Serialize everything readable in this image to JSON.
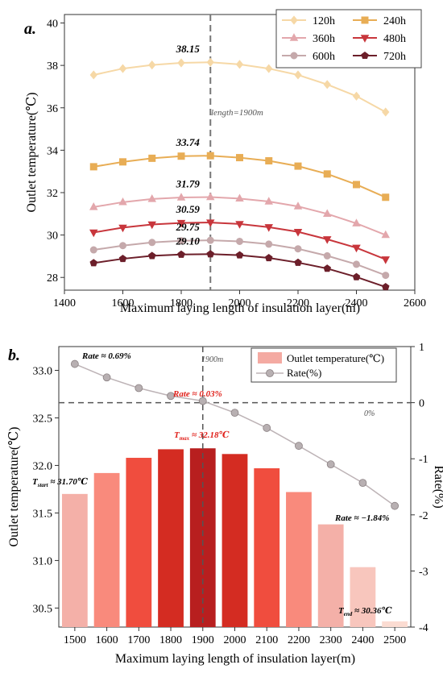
{
  "chart_data": [
    {
      "type": "line",
      "panel_label": "a.",
      "xlabel": "Maximum laying length of insulation layer(m)",
      "ylabel": "Outlet temperature(℃)",
      "xlim": [
        1400,
        2600
      ],
      "ylim": [
        27.4,
        40.4
      ],
      "xticks": [
        "1400",
        "1600",
        "1800",
        "2000",
        "2200",
        "2400",
        "2600"
      ],
      "yticks": [
        "28",
        "30",
        "32",
        "34",
        "36",
        "38",
        "40"
      ],
      "legend_position": "top-right",
      "x": [
        1500,
        1600,
        1700,
        1800,
        1900,
        2000,
        2100,
        2200,
        2300,
        2400,
        2500
      ],
      "series": [
        {
          "name": "120h",
          "color": "#f6d8a6",
          "marker": "diamond",
          "values": [
            37.55,
            37.85,
            38.02,
            38.12,
            38.15,
            38.05,
            37.85,
            37.55,
            37.1,
            36.55,
            35.8
          ]
        },
        {
          "name": "240h",
          "color": "#e8ad55",
          "marker": "square",
          "values": [
            33.22,
            33.45,
            33.62,
            33.72,
            33.74,
            33.65,
            33.5,
            33.25,
            32.88,
            32.38,
            31.78
          ]
        },
        {
          "name": "360h",
          "color": "#e3a7ac",
          "marker": "triangle-up",
          "values": [
            31.32,
            31.55,
            31.7,
            31.77,
            31.79,
            31.72,
            31.58,
            31.35,
            31.0,
            30.55,
            30.0
          ]
        },
        {
          "name": "480h",
          "color": "#c8363c",
          "marker": "triangle-down",
          "values": [
            30.12,
            30.35,
            30.5,
            30.57,
            30.59,
            30.52,
            30.37,
            30.15,
            29.8,
            29.4,
            28.85
          ]
        },
        {
          "name": "600h",
          "color": "#c5a9ab",
          "marker": "circle",
          "values": [
            29.3,
            29.5,
            29.65,
            29.73,
            29.75,
            29.7,
            29.57,
            29.35,
            29.02,
            28.62,
            28.1
          ]
        },
        {
          "name": "720h",
          "color": "#6c1f2a",
          "marker": "pentagon",
          "values": [
            28.68,
            28.88,
            29.02,
            29.08,
            29.1,
            29.05,
            28.92,
            28.7,
            28.42,
            28.02,
            27.55
          ]
        }
      ],
      "annotations": {
        "vline_x": 1900,
        "vline_label": "length=1900m",
        "peak_labels": [
          "38.15",
          "33.74",
          "31.79",
          "30.59",
          "29.75",
          "29.10"
        ]
      }
    },
    {
      "type": "bar+line",
      "panel_label": "b.",
      "xlabel": "Maximum laying length of insulation layer(m)",
      "ylabel_left": "Outlet temperature(℃)",
      "ylabel_right": "Rate(%)",
      "ylim_left": [
        30.3,
        33.25
      ],
      "ylim_right": [
        -4,
        1
      ],
      "yticks_left": [
        "30.5",
        "31.0",
        "31.5",
        "32.0",
        "32.5",
        "33.0"
      ],
      "yticks_right": [
        "-4",
        "-3",
        "-2",
        "-1",
        "0",
        "1"
      ],
      "categories": [
        "1500",
        "1600",
        "1700",
        "1800",
        "1900",
        "2000",
        "2100",
        "2200",
        "2300",
        "2400",
        "2500"
      ],
      "bar_series": {
        "name": "Outlet temperature(℃)",
        "values": [
          31.7,
          31.92,
          32.08,
          32.17,
          32.18,
          32.12,
          31.97,
          31.72,
          31.38,
          30.93,
          30.36
        ],
        "colors": [
          "#f4b0a8",
          "#f98a7c",
          "#f04d3e",
          "#d42c22",
          "#b81f1f",
          "#d42c22",
          "#f04d3e",
          "#f98a7c",
          "#f4b0a8",
          "#f8c6bd",
          "#fbdcd2"
        ]
      },
      "line_series": {
        "name": "Rate(%)",
        "values": [
          0.69,
          0.45,
          0.26,
          0.12,
          0.03,
          -0.18,
          -0.45,
          -0.77,
          -1.1,
          -1.43,
          -1.84
        ]
      },
      "annotations": {
        "vline_x": "1900",
        "vline_label": "1900m",
        "hline_y": 0,
        "hline_label": "0%",
        "rate_start": "Rate ≈ 0.69%",
        "rate_mid": "Rate ≈ 0.03%",
        "rate_end": "Rate ≈ −1.84%",
        "t_start_sym": "T",
        "t_start_sub": "start",
        "t_start_val": " ≈ 31.70℃",
        "t_max_sym": "T",
        "t_max_sub": "max",
        "t_max_val": " ≈ 32.18℃",
        "t_end_sym": "T",
        "t_end_sub": "end",
        "t_end_val": " ≈ 30.36℃"
      },
      "legend_position": "top-right"
    }
  ]
}
